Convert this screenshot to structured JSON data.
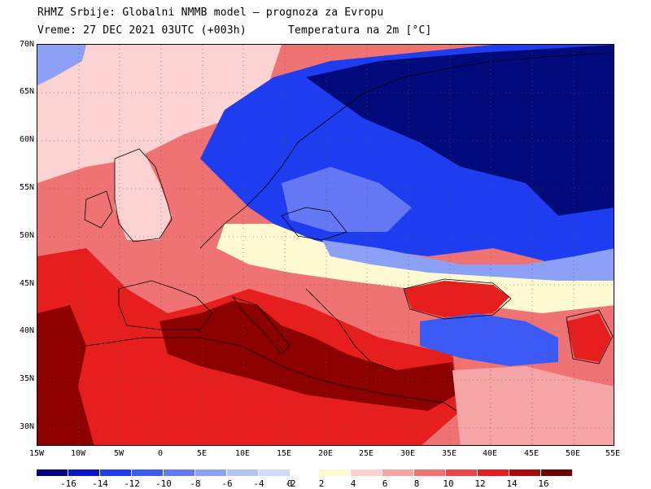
{
  "header": {
    "line1": "RHMZ Srbije: Globalni NMMB model — prognoza za Evropu",
    "line2a": "Vreme: 27 DEC 2021 03UTC (+003h)",
    "line2b": "Temperatura na 2m [°C]"
  },
  "lat_labels": [
    "70N",
    "65N",
    "60N",
    "55N",
    "50N",
    "45N",
    "40N",
    "35N",
    "30N"
  ],
  "lon_labels": [
    "15W",
    "10W",
    "5W",
    "0",
    "5E",
    "10E",
    "15E",
    "20E",
    "25E",
    "30E",
    "35E",
    "40E",
    "45E",
    "50E",
    "55E"
  ],
  "colorbar": {
    "colors": [
      "#000080",
      "#0a14c8",
      "#1e3cf0",
      "#3c5af5",
      "#6478f5",
      "#8ca0f5",
      "#b4c3f5",
      "#d2dcfa",
      "#ffffff",
      "#fffad2",
      "#fcd2d2",
      "#f5a5a5",
      "#f07373",
      "#eb4646",
      "#e61e1e",
      "#aa0a0a",
      "#6e0000"
    ],
    "labels": [
      "-16",
      "-14",
      "-12",
      "-10",
      "-8",
      "-6",
      "-4",
      "-2",
      "0",
      "2",
      "4",
      "6",
      "8",
      "10",
      "12",
      "14",
      "16"
    ]
  },
  "map_layers": {
    "ocean": "#ff5a5a",
    "warm_med": "#8c0000",
    "cold_core": "#000a7a"
  }
}
